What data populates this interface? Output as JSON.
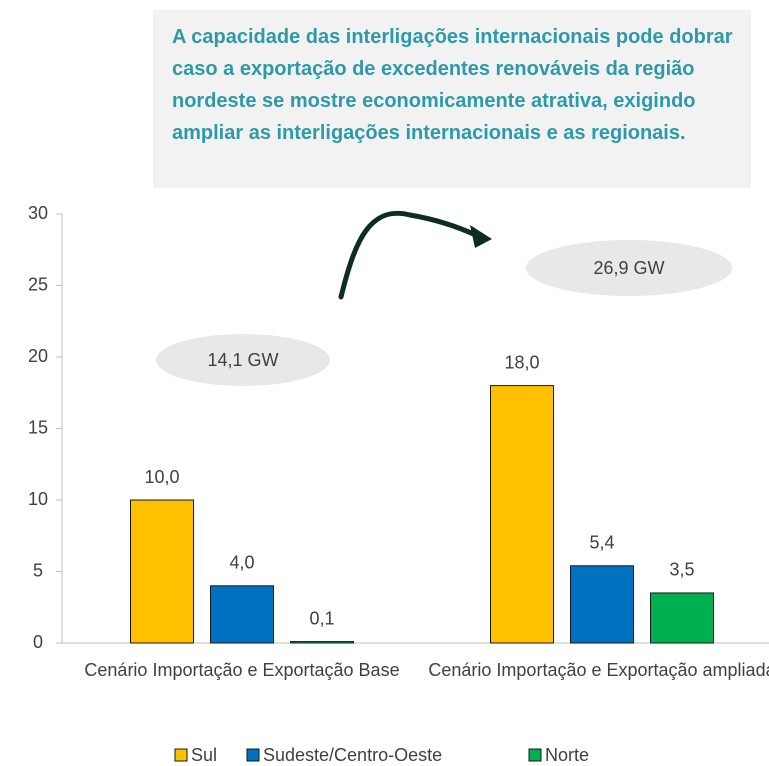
{
  "chart_data": {
    "type": "bar",
    "callout": "A capacidade das interligações internacionais pode dobrar caso a exportação de excedentes renováveis da região nordeste se mostre economicamente atrativa, exigindo ampliar as interligações internacionais e as regionais.",
    "annotations": [
      "14,1 GW",
      "26,9 GW"
    ],
    "categories": [
      "Cenário Importação e Exportação Base",
      "Cenário Importação e Exportação ampliada"
    ],
    "series": [
      {
        "name": "Sul",
        "color": "#FFC000",
        "values": [
          10.0,
          18.0
        ],
        "value_labels": [
          "10,0",
          "18,0"
        ]
      },
      {
        "name": "Sudeste/Centro-Oeste",
        "color": "#0070C0",
        "values": [
          4.0,
          5.4
        ],
        "value_labels": [
          "4,0",
          "5,4"
        ]
      },
      {
        "name": "Norte",
        "color": "#00B050",
        "values": [
          0.1,
          3.5
        ],
        "value_labels": [
          "0,1",
          "3,5"
        ]
      }
    ],
    "ylim": [
      0,
      30
    ],
    "yticks": [
      0,
      5,
      10,
      15,
      20,
      25,
      30
    ]
  }
}
